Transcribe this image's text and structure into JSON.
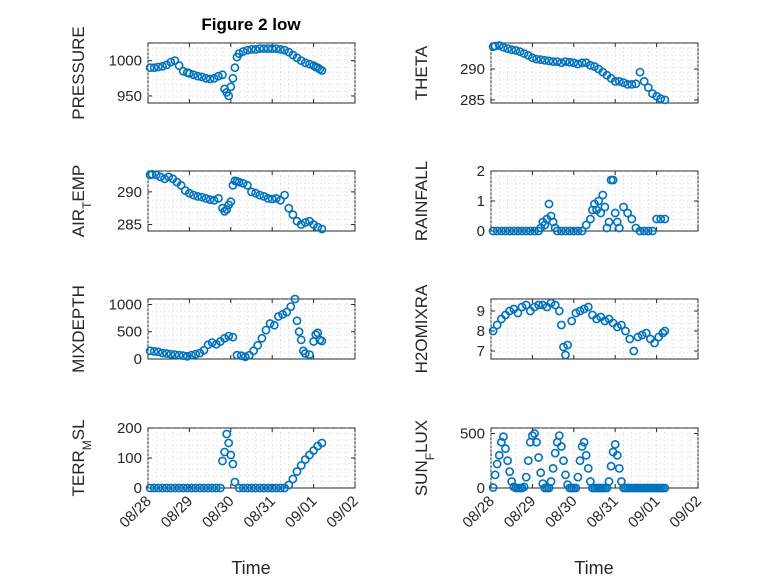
{
  "title": "Figure 2 low",
  "colors": {
    "marker": "#0072bd",
    "axis": "#262626",
    "grid": "#d9d9d9"
  },
  "x_tick_labels": [
    "08/28",
    "08/29",
    "08/30",
    "08/31",
    "09/01",
    "09/02"
  ],
  "x_label": "Time",
  "chart_data": [
    {
      "type": "scatter",
      "ylabel": "PRESSURE",
      "ylim": [
        940,
        1025
      ],
      "yticks": [
        950,
        1000
      ],
      "xlim": [
        0,
        5
      ],
      "grid": true,
      "x": [
        0.05,
        0.15,
        0.25,
        0.35,
        0.45,
        0.55,
        0.65,
        0.75,
        0.85,
        0.95,
        1.0,
        1.1,
        1.2,
        1.3,
        1.4,
        1.5,
        1.6,
        1.7,
        1.8,
        1.85,
        1.9,
        1.95,
        2.0,
        2.05,
        2.1,
        2.15,
        2.2,
        2.3,
        2.4,
        2.5,
        2.6,
        2.7,
        2.8,
        2.9,
        3.0,
        3.1,
        3.2,
        3.3,
        3.4,
        3.5,
        3.6,
        3.7,
        3.8,
        3.9,
        4.0,
        4.05,
        4.1,
        4.15,
        4.2
      ],
      "y": [
        990,
        990,
        991,
        992,
        994,
        998,
        1000,
        993,
        985,
        983,
        982,
        980,
        978,
        977,
        975,
        974,
        975,
        978,
        980,
        960,
        955,
        950,
        963,
        975,
        990,
        1005,
        1010,
        1013,
        1015,
        1016,
        1016,
        1017,
        1017,
        1017,
        1017,
        1017,
        1016,
        1015,
        1012,
        1008,
        1004,
        1000,
        997,
        995,
        993,
        991,
        990,
        988,
        986
      ]
    },
    {
      "type": "scatter",
      "ylabel": "THETA",
      "ylim": [
        284.5,
        294.2
      ],
      "yticks": [
        285,
        290
      ],
      "xlim": [
        0,
        5
      ],
      "grid": true,
      "x": [
        0.05,
        0.1,
        0.2,
        0.3,
        0.4,
        0.5,
        0.6,
        0.7,
        0.8,
        0.9,
        1.0,
        1.1,
        1.2,
        1.3,
        1.4,
        1.5,
        1.6,
        1.7,
        1.8,
        1.9,
        2.0,
        2.1,
        2.2,
        2.3,
        2.4,
        2.5,
        2.6,
        2.7,
        2.8,
        2.9,
        3.0,
        3.1,
        3.2,
        3.3,
        3.4,
        3.5,
        3.6,
        3.7,
        3.8,
        3.9,
        4.0,
        4.1,
        4.2
      ],
      "y": [
        293.6,
        293.7,
        293.8,
        293.5,
        293.3,
        293.1,
        293.0,
        292.8,
        292.5,
        292.2,
        291.8,
        291.6,
        291.5,
        291.4,
        291.3,
        291.2,
        291.2,
        291.0,
        291.2,
        291.1,
        291.0,
        290.8,
        291.0,
        291.0,
        290.6,
        290.4,
        290.0,
        289.5,
        289.0,
        288.5,
        288.0,
        288.0,
        287.8,
        287.5,
        287.5,
        287.6,
        289.5,
        288.0,
        287.0,
        286.0,
        285.6,
        285.2,
        285.0
      ]
    },
    {
      "type": "scatter",
      "ylabel": "AIR_TEMP",
      "ylim": [
        284,
        293.2
      ],
      "yticks": [
        285,
        290
      ],
      "xlim": [
        0,
        5
      ],
      "grid": true,
      "x": [
        0.05,
        0.1,
        0.2,
        0.3,
        0.4,
        0.5,
        0.6,
        0.7,
        0.8,
        0.9,
        1.0,
        1.1,
        1.2,
        1.3,
        1.4,
        1.5,
        1.6,
        1.7,
        1.8,
        1.85,
        1.9,
        1.95,
        2.0,
        2.05,
        2.1,
        2.15,
        2.2,
        2.3,
        2.4,
        2.5,
        2.6,
        2.7,
        2.8,
        2.9,
        3.0,
        3.1,
        3.2,
        3.3,
        3.4,
        3.5,
        3.6,
        3.7,
        3.8,
        3.9,
        4.0,
        4.1,
        4.2
      ],
      "y": [
        292.6,
        292.7,
        292.6,
        292.3,
        292.0,
        292.3,
        292.0,
        291.5,
        291.0,
        290.2,
        289.8,
        289.5,
        289.3,
        289.2,
        289.0,
        288.8,
        288.7,
        289.0,
        287.5,
        287.0,
        287.3,
        288.0,
        288.5,
        291.0,
        291.7,
        291.6,
        291.5,
        291.3,
        291.0,
        290.0,
        289.8,
        289.5,
        289.3,
        289.0,
        288.9,
        289.0,
        288.7,
        289.5,
        287.5,
        286.5,
        285.5,
        285.0,
        285.3,
        285.5,
        285.0,
        284.6,
        284.3
      ]
    },
    {
      "type": "scatter",
      "ylabel": "RAINFALL",
      "ylim": [
        0,
        2
      ],
      "yticks": [
        0,
        1,
        2
      ],
      "xlim": [
        0,
        5
      ],
      "grid": true,
      "x": [
        0.05,
        0.15,
        0.25,
        0.35,
        0.45,
        0.55,
        0.65,
        0.75,
        0.85,
        0.95,
        1.05,
        1.15,
        1.2,
        1.25,
        1.3,
        1.35,
        1.4,
        1.45,
        1.5,
        1.55,
        1.6,
        1.7,
        1.8,
        1.9,
        2.0,
        2.1,
        2.2,
        2.3,
        2.4,
        2.45,
        2.5,
        2.55,
        2.6,
        2.65,
        2.7,
        2.75,
        2.8,
        2.85,
        2.9,
        2.95,
        3.0,
        3.05,
        3.1,
        3.2,
        3.3,
        3.4,
        3.5,
        3.6,
        3.7,
        3.8,
        3.9,
        4.0,
        4.1,
        4.2
      ],
      "y": [
        0,
        0,
        0,
        0,
        0,
        0,
        0,
        0,
        0,
        0,
        0,
        0,
        0.1,
        0.3,
        0.2,
        0.4,
        0.9,
        0.5,
        0.3,
        0.1,
        0,
        0,
        0,
        0,
        0,
        0,
        0,
        0.2,
        0.4,
        0.7,
        0.9,
        0.7,
        1.0,
        0.6,
        1.2,
        0.8,
        0.1,
        0.3,
        1.7,
        1.7,
        0.6,
        0.3,
        0.1,
        0.8,
        0.6,
        0.4,
        0.1,
        0,
        0,
        0,
        0,
        0.4,
        0.4,
        0.4
      ]
    },
    {
      "type": "scatter",
      "ylabel": "MIXDEPTH",
      "ylim": [
        0,
        1100
      ],
      "yticks": [
        0,
        500,
        1000
      ],
      "xlim": [
        0,
        5
      ],
      "grid": true,
      "x": [
        0.05,
        0.15,
        0.25,
        0.35,
        0.45,
        0.55,
        0.65,
        0.75,
        0.85,
        0.95,
        1.05,
        1.15,
        1.25,
        1.35,
        1.45,
        1.55,
        1.65,
        1.75,
        1.85,
        1.95,
        2.05,
        2.15,
        2.25,
        2.35,
        2.45,
        2.55,
        2.65,
        2.75,
        2.85,
        2.95,
        3.05,
        3.15,
        3.25,
        3.35,
        3.45,
        3.55,
        3.6,
        3.65,
        3.7,
        3.75,
        3.8,
        3.9,
        4.0,
        4.05,
        4.1,
        4.15,
        4.2
      ],
      "y": [
        150,
        140,
        130,
        110,
        100,
        90,
        80,
        70,
        60,
        50,
        70,
        90,
        110,
        160,
        260,
        300,
        270,
        320,
        380,
        420,
        400,
        70,
        60,
        40,
        70,
        150,
        250,
        380,
        530,
        650,
        620,
        780,
        820,
        860,
        960,
        1100,
        700,
        500,
        350,
        150,
        100,
        80,
        320,
        450,
        480,
        350,
        330
      ]
    },
    {
      "type": "scatter",
      "ylabel": "H2OMIXRA",
      "ylim": [
        6.6,
        9.6
      ],
      "yticks": [
        7,
        8,
        9
      ],
      "xlim": [
        0,
        5
      ],
      "grid": true,
      "x": [
        0.05,
        0.15,
        0.25,
        0.35,
        0.45,
        0.55,
        0.65,
        0.75,
        0.85,
        0.95,
        1.05,
        1.15,
        1.25,
        1.35,
        1.45,
        1.55,
        1.65,
        1.7,
        1.75,
        1.8,
        1.85,
        1.95,
        2.05,
        2.15,
        2.25,
        2.35,
        2.45,
        2.55,
        2.65,
        2.75,
        2.85,
        2.95,
        3.05,
        3.15,
        3.25,
        3.35,
        3.45,
        3.55,
        3.65,
        3.75,
        3.85,
        3.95,
        4.05,
        4.15,
        4.2
      ],
      "y": [
        8.0,
        8.3,
        8.6,
        8.8,
        9.0,
        9.1,
        8.9,
        9.2,
        9.3,
        9.0,
        9.2,
        9.3,
        9.3,
        9.2,
        9.4,
        9.3,
        9.0,
        8.3,
        7.2,
        6.8,
        7.3,
        8.5,
        8.9,
        9.0,
        9.1,
        9.2,
        8.8,
        8.6,
        8.7,
        8.5,
        8.6,
        8.4,
        8.2,
        8.3,
        8.0,
        7.6,
        7.0,
        7.7,
        7.8,
        7.9,
        7.6,
        7.4,
        7.7,
        7.9,
        8.0
      ]
    },
    {
      "type": "scatter",
      "ylabel": "TERR_MSL",
      "ylim": [
        0,
        200
      ],
      "yticks": [
        0,
        100,
        200
      ],
      "xlim": [
        0,
        5
      ],
      "grid": true,
      "x": [
        0.05,
        0.15,
        0.25,
        0.35,
        0.45,
        0.55,
        0.65,
        0.75,
        0.85,
        0.95,
        1.05,
        1.15,
        1.25,
        1.35,
        1.45,
        1.55,
        1.65,
        1.75,
        1.8,
        1.85,
        1.9,
        1.95,
        2.0,
        2.05,
        2.1,
        2.2,
        2.3,
        2.4,
        2.5,
        2.6,
        2.7,
        2.8,
        2.9,
        3.0,
        3.1,
        3.2,
        3.3,
        3.4,
        3.5,
        3.6,
        3.7,
        3.8,
        3.9,
        4.0,
        4.1,
        4.2
      ],
      "y": [
        0,
        0,
        0,
        0,
        0,
        0,
        0,
        0,
        0,
        0,
        0,
        0,
        0,
        0,
        0,
        0,
        0,
        0,
        90,
        120,
        180,
        150,
        110,
        80,
        20,
        0,
        0,
        0,
        0,
        0,
        0,
        0,
        0,
        0,
        0,
        0,
        0,
        10,
        30,
        55,
        75,
        95,
        110,
        125,
        140,
        150
      ]
    },
    {
      "type": "scatter",
      "ylabel": "SUN_FLUX",
      "ylim": [
        0,
        550
      ],
      "yticks": [
        0,
        500
      ],
      "xlim": [
        0,
        5
      ],
      "grid": true,
      "x": [
        0.05,
        0.1,
        0.15,
        0.2,
        0.25,
        0.3,
        0.35,
        0.4,
        0.45,
        0.5,
        0.55,
        0.6,
        0.65,
        0.7,
        0.75,
        0.8,
        0.85,
        0.9,
        0.95,
        1.0,
        1.05,
        1.1,
        1.15,
        1.2,
        1.25,
        1.3,
        1.35,
        1.4,
        1.45,
        1.5,
        1.55,
        1.6,
        1.65,
        1.7,
        1.75,
        1.8,
        1.85,
        1.9,
        1.95,
        2.0,
        2.05,
        2.1,
        2.15,
        2.2,
        2.25,
        2.3,
        2.35,
        2.4,
        2.45,
        2.5,
        2.55,
        2.6,
        2.65,
        2.7,
        2.75,
        2.8,
        2.85,
        2.9,
        2.95,
        3.0,
        3.05,
        3.1,
        3.15,
        3.2,
        3.25,
        3.3,
        3.35,
        3.4,
        3.45,
        3.5,
        3.55,
        3.6,
        3.65,
        3.7,
        3.75,
        3.8,
        3.85,
        3.9,
        3.95,
        4.0,
        4.05,
        4.1,
        4.15,
        4.2
      ],
      "y": [
        5,
        120,
        220,
        300,
        420,
        470,
        360,
        250,
        150,
        60,
        10,
        0,
        0,
        0,
        0,
        10,
        100,
        250,
        420,
        480,
        500,
        420,
        280,
        140,
        40,
        0,
        0,
        0,
        60,
        180,
        320,
        420,
        480,
        380,
        250,
        120,
        30,
        0,
        0,
        0,
        0,
        100,
        250,
        380,
        420,
        300,
        180,
        60,
        0,
        0,
        0,
        0,
        0,
        0,
        0,
        0,
        60,
        200,
        330,
        400,
        300,
        180,
        60,
        0,
        0,
        0,
        0,
        0,
        0,
        0,
        0,
        0,
        0,
        0,
        0,
        0,
        0,
        0,
        0,
        0,
        0,
        0,
        0,
        0
      ]
    }
  ]
}
